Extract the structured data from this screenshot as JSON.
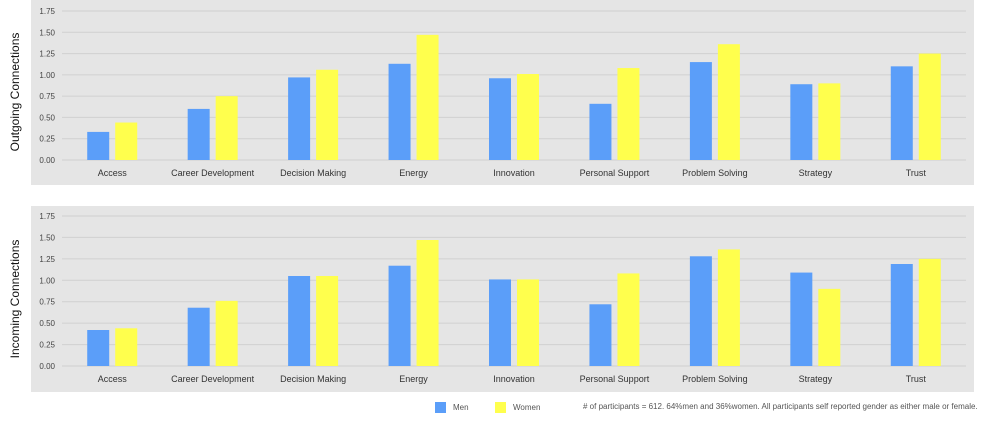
{
  "chart_data": [
    {
      "type": "bar",
      "ylabel": "Outgoing Connections",
      "ylim": [
        0,
        1.75
      ],
      "yticks": [
        "0.00",
        "0.25",
        "0.50",
        "0.75",
        "1.00",
        "1.25",
        "1.50",
        "1.75"
      ],
      "categories": [
        "Access",
        "Career Development",
        "Decision Making",
        "Energy",
        "Innovation",
        "Personal Support",
        "Problem Solving",
        "Strategy",
        "Trust"
      ],
      "series": [
        {
          "name": "Men",
          "values": [
            0.33,
            0.6,
            0.97,
            1.13,
            0.96,
            0.66,
            1.15,
            0.89,
            1.1
          ]
        },
        {
          "name": "Women",
          "values": [
            0.44,
            0.75,
            1.06,
            1.47,
            1.01,
            1.08,
            1.36,
            0.9,
            1.25
          ]
        }
      ],
      "grid": true
    },
    {
      "type": "bar",
      "ylabel": "Incoming Connections",
      "ylim": [
        0,
        1.75
      ],
      "yticks": [
        "0.00",
        "0.25",
        "0.50",
        "0.75",
        "1.00",
        "1.25",
        "1.50",
        "1.75"
      ],
      "categories": [
        "Access",
        "Career Development",
        "Decision Making",
        "Energy",
        "Innovation",
        "Personal Support",
        "Problem Solving",
        "Strategy",
        "Trust"
      ],
      "series": [
        {
          "name": "Men",
          "values": [
            0.42,
            0.68,
            1.05,
            1.17,
            1.01,
            0.72,
            1.28,
            1.09,
            1.19
          ]
        },
        {
          "name": "Women",
          "values": [
            0.44,
            0.76,
            1.05,
            1.47,
            1.01,
            1.08,
            1.36,
            0.9,
            1.25
          ]
        }
      ],
      "grid": true
    }
  ],
  "legend": {
    "placement": "bottom",
    "items": [
      {
        "label": "Men",
        "color": "#5b9ef9"
      },
      {
        "label": "Women",
        "color": "#ffff4d"
      }
    ]
  },
  "footnote": "# of participants  = 612. 64%men and 36%women. All participants self reported gender as either male or female.",
  "colors": {
    "men": "#5b9ef9",
    "women": "#ffff4d",
    "panel": "#e5e5e5",
    "grid": "#d0d0d0"
  }
}
